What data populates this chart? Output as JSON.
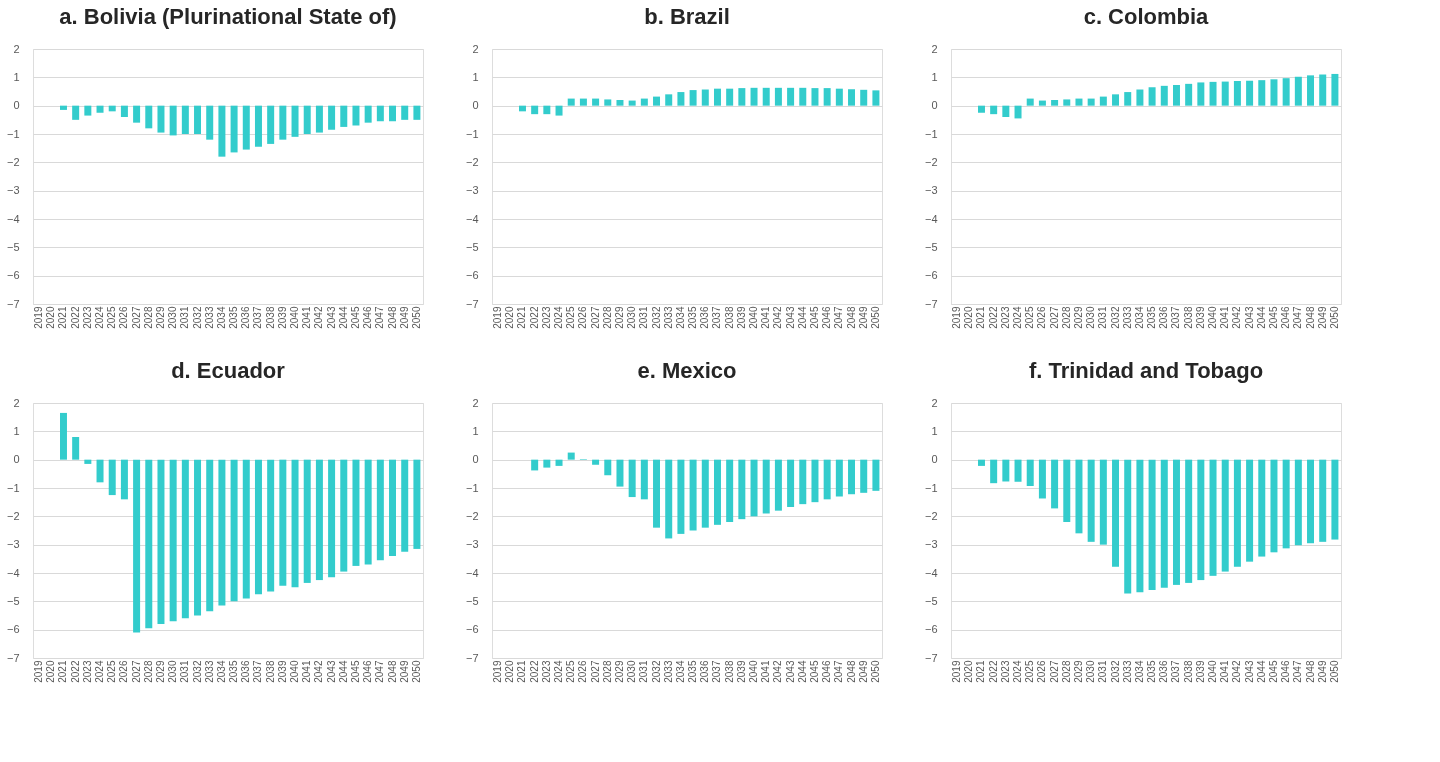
{
  "chart_data": [
    {
      "type": "bar",
      "title": "a. Bolivia (Plurinational State of)",
      "categories": [
        "2019",
        "2020",
        "2021",
        "2022",
        "2023",
        "2024",
        "2025",
        "2026",
        "2027",
        "2028",
        "2029",
        "2030",
        "2031",
        "2032",
        "2033",
        "2034",
        "2035",
        "2036",
        "2037",
        "2038",
        "2039",
        "2040",
        "2041",
        "2042",
        "2043",
        "2044",
        "2045",
        "2046",
        "2047",
        "2048",
        "2049",
        "2050"
      ],
      "color": "#33cccc",
      "ylim": [
        -7,
        2
      ],
      "yticks": [
        -7,
        -6,
        -5,
        -4,
        -3,
        -2,
        -1,
        0,
        1,
        2
      ],
      "grid": "y",
      "values": [
        null,
        null,
        -0.15,
        -0.5,
        -0.35,
        -0.25,
        -0.2,
        -0.4,
        -0.6,
        -0.8,
        -0.95,
        -1.05,
        -1.0,
        -1.0,
        -1.2,
        -1.8,
        -1.65,
        -1.55,
        -1.45,
        -1.35,
        -1.2,
        -1.1,
        -1.0,
        -0.95,
        -0.85,
        -0.75,
        -0.7,
        -0.6,
        -0.55,
        -0.55,
        -0.5,
        -0.5
      ]
    },
    {
      "type": "bar",
      "title": "b. Brazil",
      "categories": [
        "2019",
        "2020",
        "2021",
        "2022",
        "2023",
        "2024",
        "2025",
        "2026",
        "2027",
        "2028",
        "2029",
        "2030",
        "2031",
        "2032",
        "2033",
        "2034",
        "2035",
        "2036",
        "2037",
        "2038",
        "2039",
        "2040",
        "2041",
        "2042",
        "2043",
        "2044",
        "2045",
        "2046",
        "2047",
        "2048",
        "2049",
        "2050"
      ],
      "color": "#33cccc",
      "ylim": [
        -7,
        2
      ],
      "yticks": [
        -7,
        -6,
        -5,
        -4,
        -3,
        -2,
        -1,
        0,
        1,
        2
      ],
      "grid": "y",
      "values": [
        null,
        null,
        -0.2,
        -0.3,
        -0.3,
        -0.35,
        0.25,
        0.25,
        0.25,
        0.22,
        0.2,
        0.18,
        0.25,
        0.32,
        0.4,
        0.48,
        0.55,
        0.57,
        0.6,
        0.6,
        0.62,
        0.63,
        0.63,
        0.63,
        0.63,
        0.63,
        0.62,
        0.62,
        0.6,
        0.58,
        0.56,
        0.54
      ]
    },
    {
      "type": "bar",
      "title": "c. Colombia",
      "categories": [
        "2019",
        "2020",
        "2021",
        "2022",
        "2023",
        "2024",
        "2025",
        "2026",
        "2027",
        "2028",
        "2029",
        "2030",
        "2031",
        "2032",
        "2033",
        "2034",
        "2035",
        "2036",
        "2037",
        "2038",
        "2039",
        "2040",
        "2041",
        "2042",
        "2043",
        "2044",
        "2045",
        "2046",
        "2047",
        "2048",
        "2049",
        "2050"
      ],
      "color": "#33cccc",
      "ylim": [
        -7,
        2
      ],
      "yticks": [
        -7,
        -6,
        -5,
        -4,
        -3,
        -2,
        -1,
        0,
        1,
        2
      ],
      "grid": "y",
      "values": [
        null,
        null,
        -0.25,
        -0.3,
        -0.4,
        -0.45,
        0.25,
        0.18,
        0.2,
        0.22,
        0.25,
        0.25,
        0.32,
        0.4,
        0.48,
        0.57,
        0.65,
        0.7,
        0.73,
        0.77,
        0.82,
        0.84,
        0.85,
        0.87,
        0.88,
        0.9,
        0.93,
        0.97,
        1.02,
        1.07,
        1.1,
        1.12
      ]
    },
    {
      "type": "bar",
      "title": "d. Ecuador",
      "categories": [
        "2019",
        "2020",
        "2021",
        "2022",
        "2023",
        "2024",
        "2025",
        "2026",
        "2027",
        "2028",
        "2029",
        "2030",
        "2031",
        "2032",
        "2033",
        "2034",
        "2035",
        "2036",
        "2037",
        "2038",
        "2039",
        "2040",
        "2041",
        "2042",
        "2043",
        "2044",
        "2045",
        "2046",
        "2047",
        "2048",
        "2049",
        "2050"
      ],
      "color": "#33cccc",
      "ylim": [
        -7,
        2
      ],
      "yticks": [
        -7,
        -6,
        -5,
        -4,
        -3,
        -2,
        -1,
        0,
        1,
        2
      ],
      "grid": "y",
      "values": [
        null,
        null,
        1.65,
        0.8,
        -0.15,
        -0.8,
        -1.25,
        -1.4,
        -6.1,
        -5.95,
        -5.8,
        -5.7,
        -5.6,
        -5.5,
        -5.35,
        -5.15,
        -5.0,
        -4.9,
        -4.75,
        -4.65,
        -4.45,
        -4.5,
        -4.35,
        -4.25,
        -4.15,
        -3.95,
        -3.75,
        -3.7,
        -3.55,
        -3.4,
        -3.25,
        -3.15
      ]
    },
    {
      "type": "bar",
      "title": "e. Mexico",
      "categories": [
        "2019",
        "2020",
        "2021",
        "2022",
        "2023",
        "2024",
        "2025",
        "2026",
        "2027",
        "2028",
        "2029",
        "2030",
        "2031",
        "2032",
        "2033",
        "2034",
        "2035",
        "2036",
        "2037",
        "2038",
        "2039",
        "2040",
        "2041",
        "2042",
        "2043",
        "2044",
        "2045",
        "2046",
        "2047",
        "2048",
        "2049",
        "2050"
      ],
      "color": "#33cccc",
      "ylim": [
        -7,
        2
      ],
      "yticks": [
        -7,
        -6,
        -5,
        -4,
        -3,
        -2,
        -1,
        0,
        1,
        2
      ],
      "grid": "y",
      "values": [
        null,
        null,
        null,
        -0.38,
        -0.28,
        -0.22,
        0.25,
        0.02,
        -0.18,
        -0.55,
        -0.95,
        -1.32,
        -1.4,
        -2.4,
        -2.78,
        -2.62,
        -2.5,
        -2.4,
        -2.3,
        -2.2,
        -2.1,
        -2.0,
        -1.9,
        -1.8,
        -1.67,
        -1.57,
        -1.5,
        -1.4,
        -1.3,
        -1.22,
        -1.17,
        -1.1
      ]
    },
    {
      "type": "bar",
      "title": "f. Trinidad and Tobago",
      "categories": [
        "2019",
        "2020",
        "2021",
        "2022",
        "2023",
        "2024",
        "2025",
        "2026",
        "2027",
        "2028",
        "2029",
        "2030",
        "2031",
        "2032",
        "2033",
        "2034",
        "2035",
        "2036",
        "2037",
        "2038",
        "2039",
        "2040",
        "2041",
        "2042",
        "2043",
        "2044",
        "2045",
        "2046",
        "2047",
        "2048",
        "2049",
        "2050"
      ],
      "color": "#33cccc",
      "ylim": [
        -7,
        2
      ],
      "yticks": [
        -7,
        -6,
        -5,
        -4,
        -3,
        -2,
        -1,
        0,
        1,
        2
      ],
      "grid": "y",
      "values": [
        null,
        null,
        -0.22,
        -0.83,
        -0.77,
        -0.78,
        -0.93,
        -1.37,
        -1.72,
        -2.2,
        -2.6,
        -2.9,
        -3.0,
        -3.78,
        -4.72,
        -4.68,
        -4.6,
        -4.52,
        -4.42,
        -4.35,
        -4.25,
        -4.1,
        -3.95,
        -3.78,
        -3.6,
        -3.42,
        -3.27,
        -3.13,
        -3.02,
        -2.95,
        -2.9,
        -2.82
      ]
    }
  ]
}
